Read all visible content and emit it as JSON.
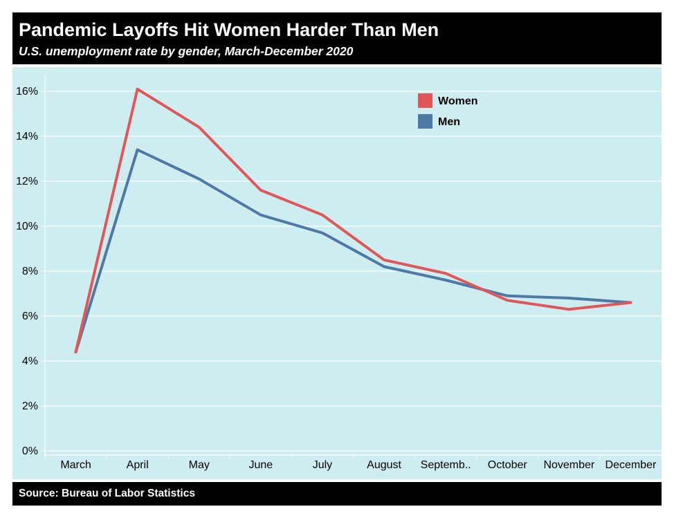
{
  "header": {
    "title": "Pandemic Layoffs Hit Women Harder Than Men",
    "subtitle": "U.S. unemployment rate by gender, March-December 2020"
  },
  "footer": {
    "source": "Source: Bureau of Labor Statistics"
  },
  "chart_data": {
    "type": "line",
    "categories": [
      "March",
      "April",
      "May",
      "June",
      "July",
      "August",
      "September",
      "October",
      "November",
      "December"
    ],
    "category_tick_labels": [
      "March",
      "April",
      "May",
      "June",
      "July",
      "August",
      "Septemb..",
      "October",
      "November",
      "December"
    ],
    "series": [
      {
        "name": "Women",
        "color": "#e15759",
        "values": [
          4.4,
          16.1,
          14.4,
          11.6,
          10.5,
          8.5,
          7.9,
          6.7,
          6.3,
          6.6
        ]
      },
      {
        "name": "Men",
        "color": "#4e79a7",
        "values": [
          4.4,
          13.4,
          12.1,
          10.5,
          9.7,
          8.2,
          7.6,
          6.9,
          6.8,
          6.6
        ]
      }
    ],
    "ylim": [
      0,
      16
    ],
    "y_ticks": [
      0,
      2,
      4,
      6,
      8,
      10,
      12,
      14,
      16
    ],
    "y_tick_labels": [
      "0%",
      "2%",
      "4%",
      "6%",
      "8%",
      "10%",
      "12%",
      "14%",
      "16%"
    ],
    "grid": "horizontal",
    "legend_placement": "top-right",
    "plot_background": "#cdedf0"
  }
}
